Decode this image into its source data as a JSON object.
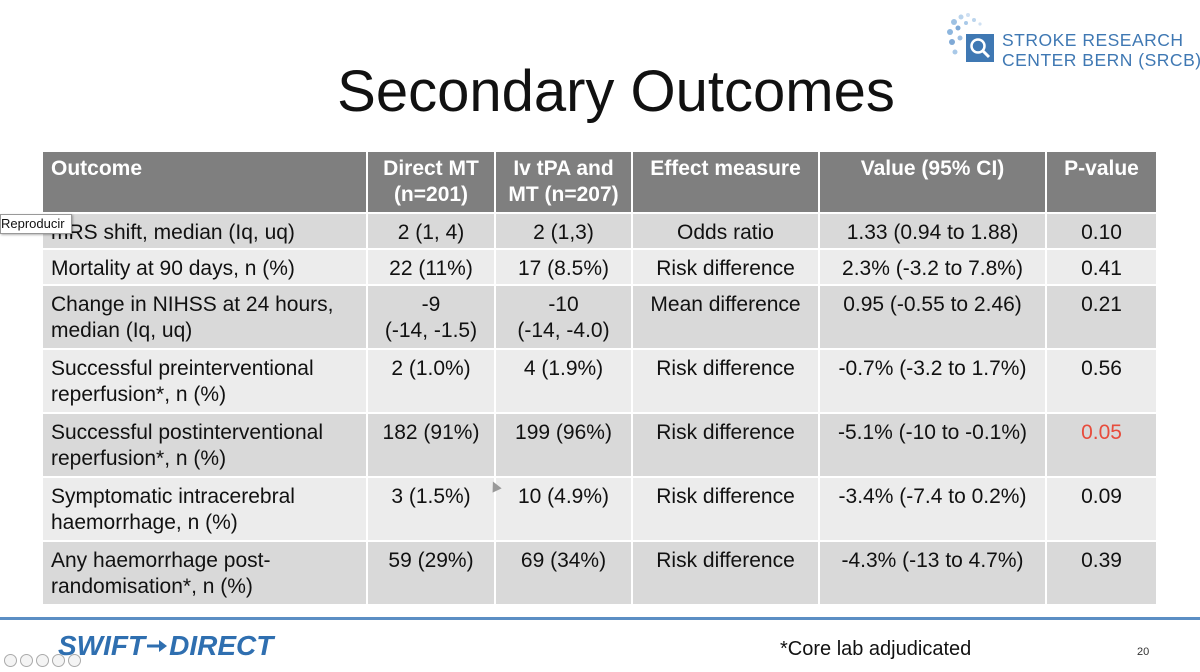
{
  "slide": {
    "title": "Secondary Outcomes",
    "page_number": "20",
    "footnote": "*Core lab adjudicated",
    "tooltip": "Reproducir"
  },
  "logo": {
    "line1": "STROKE RESEARCH",
    "line2": "CENTER BERN (SRCB)",
    "color": "#3f78b3"
  },
  "footer_logo": {
    "left": "SWIFT",
    "right": "DIRECT",
    "color": "#2f6fb0"
  },
  "table": {
    "headers": [
      [
        "Outcome"
      ],
      [
        "Direct MT",
        "(n=201)"
      ],
      [
        "Iv tPA and",
        "MT (n=207)"
      ],
      [
        "Effect measure"
      ],
      [
        "Value (95% CI)"
      ],
      [
        "P-value"
      ]
    ],
    "rows": [
      {
        "outcome": [
          "mRS shift, median (Iq, uq)"
        ],
        "direct": [
          "2 (1, 4)"
        ],
        "ivtpa": [
          "2 (1,3)"
        ],
        "measure": "Odds ratio",
        "value": "1.33 (0.94 to 1.88)",
        "p": "0.10"
      },
      {
        "outcome": [
          "Mortality at 90 days, n (%)"
        ],
        "direct": [
          "22 (11%)"
        ],
        "ivtpa": [
          "17 (8.5%)"
        ],
        "measure": "Risk difference",
        "value": "2.3% (-3.2 to 7.8%)",
        "p": "0.41"
      },
      {
        "outcome": [
          "Change in NIHSS at 24 hours,",
          "median (Iq, uq)"
        ],
        "direct": [
          "-9",
          "(-14, -1.5)"
        ],
        "ivtpa": [
          "-10",
          "(-14, -4.0)"
        ],
        "measure": "Mean difference",
        "value": "0.95 (-0.55 to 2.46)",
        "p": "0.21"
      },
      {
        "outcome": [
          "Successful preinterventional",
          "reperfusion*, n (%)"
        ],
        "direct": [
          "2 (1.0%)"
        ],
        "ivtpa": [
          "4 (1.9%)"
        ],
        "measure": "Risk difference",
        "value": "-0.7% (-3.2 to 1.7%)",
        "p": "0.56"
      },
      {
        "outcome": [
          "Successful postinterventional",
          "reperfusion*, n (%)"
        ],
        "direct": [
          "182 (91%)"
        ],
        "ivtpa": [
          "199 (96%)"
        ],
        "measure": "Risk difference",
        "value": "-5.1% (-10 to -0.1%)",
        "p": "0.05",
        "p_highlight": "#e74c3c"
      },
      {
        "outcome": [
          "Symptomatic intracerebral",
          "haemorrhage, n (%)"
        ],
        "direct": [
          "3 (1.5%)"
        ],
        "ivtpa": [
          "10 (4.9%)"
        ],
        "measure": "Risk difference",
        "value": "-3.4% (-7.4 to 0.2%)",
        "p": "0.09"
      },
      {
        "outcome": [
          "Any haemorrhage post-",
          "randomisation*, n (%)"
        ],
        "direct": [
          "59 (29%)"
        ],
        "ivtpa": [
          "69 (34%)"
        ],
        "measure": "Risk difference",
        "value": "-4.3% (-13 to 4.7%)",
        "p": "0.39"
      }
    ]
  }
}
